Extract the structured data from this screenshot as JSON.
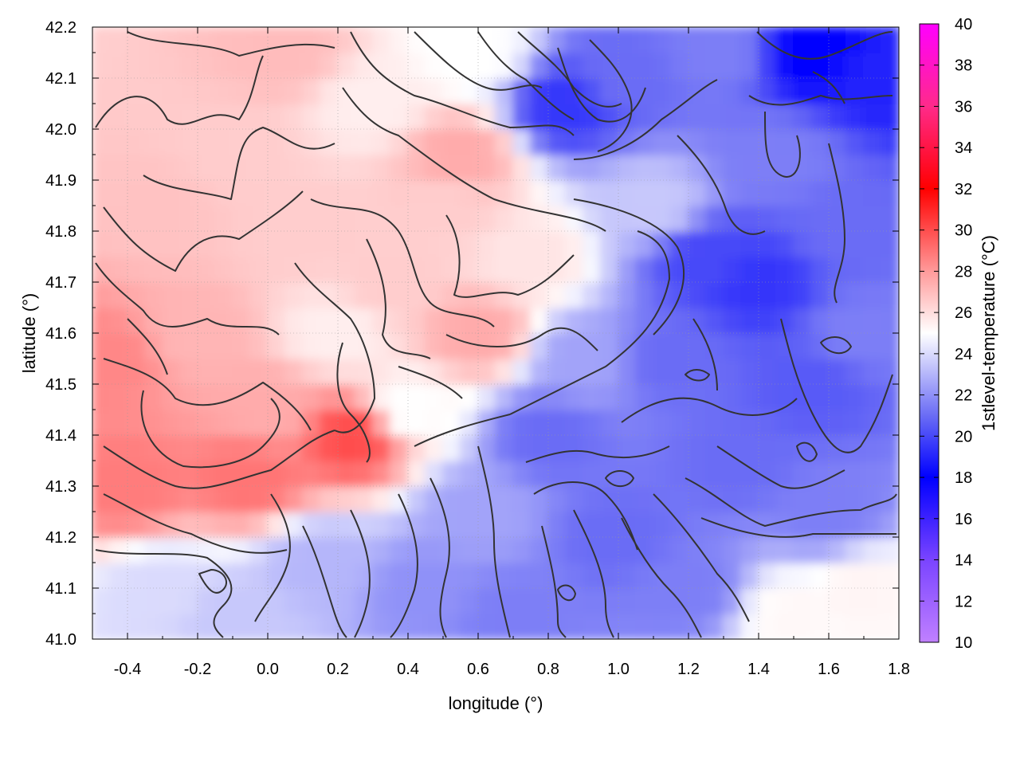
{
  "chart_data": {
    "type": "heatmap",
    "title": "",
    "xlabel": "longitude (°)",
    "ylabel": "latitude (°)",
    "colorbar_label": "1stlevel-temperature (°C)",
    "xlim": [
      -0.5,
      1.8
    ],
    "ylim": [
      41.0,
      42.2
    ],
    "zlim": [
      10,
      40
    ],
    "x_ticks": [
      "-0.4",
      "-0.2",
      "0.0",
      "0.2",
      "0.4",
      "0.6",
      "0.8",
      "1.0",
      "1.2",
      "1.4",
      "1.6",
      "1.8"
    ],
    "x_tick_values": [
      -0.4,
      -0.2,
      0.0,
      0.2,
      0.4,
      0.6,
      0.8,
      1.0,
      1.2,
      1.4,
      1.6,
      1.8
    ],
    "y_ticks": [
      "41.0",
      "41.1",
      "41.2",
      "41.3",
      "41.4",
      "41.5",
      "41.6",
      "41.7",
      "41.8",
      "41.9",
      "42.0",
      "42.1",
      "42.2"
    ],
    "y_tick_values": [
      41.0,
      41.1,
      41.2,
      41.3,
      41.4,
      41.5,
      41.6,
      41.7,
      41.8,
      41.9,
      42.0,
      42.1,
      42.2
    ],
    "colorbar_ticks": [
      "10",
      "12",
      "14",
      "16",
      "18",
      "20",
      "22",
      "24",
      "26",
      "28",
      "30",
      "32",
      "34",
      "36",
      "38",
      "40"
    ],
    "colorbar_tick_values": [
      10,
      12,
      14,
      16,
      18,
      20,
      22,
      24,
      26,
      28,
      30,
      32,
      34,
      36,
      38,
      40
    ],
    "colormap": [
      {
        "value": 10,
        "color": "#c080ff"
      },
      {
        "value": 14,
        "color": "#7a44ff"
      },
      {
        "value": 18,
        "color": "#0000ff"
      },
      {
        "value": 21,
        "color": "#6a6cf5"
      },
      {
        "value": 25,
        "color": "#ffffff"
      },
      {
        "value": 28,
        "color": "#ff9a9a"
      },
      {
        "value": 32,
        "color": "#ff0000"
      },
      {
        "value": 36,
        "color": "#ff2a8a"
      },
      {
        "value": 40,
        "color": "#ff00ff"
      }
    ],
    "grid": true,
    "temperature_samples": [
      {
        "lon": -0.45,
        "lat": 41.55,
        "temp": 28.5
      },
      {
        "lon": -0.4,
        "lat": 41.3,
        "temp": 28.8
      },
      {
        "lon": -0.3,
        "lat": 41.85,
        "temp": 26.8
      },
      {
        "lon": -0.2,
        "lat": 41.6,
        "temp": 27.2
      },
      {
        "lon": -0.3,
        "lat": 41.1,
        "temp": 24.0
      },
      {
        "lon": -0.1,
        "lat": 41.05,
        "temp": 23.5
      },
      {
        "lon": -0.1,
        "lat": 41.95,
        "temp": 26.5
      },
      {
        "lon": -0.05,
        "lat": 41.32,
        "temp": 29.0
      },
      {
        "lon": 0.0,
        "lat": 41.45,
        "temp": 27.5
      },
      {
        "lon": 0.05,
        "lat": 42.15,
        "temp": 27.0
      },
      {
        "lon": 0.1,
        "lat": 41.8,
        "temp": 26.5
      },
      {
        "lon": 0.15,
        "lat": 41.15,
        "temp": 23.0
      },
      {
        "lon": 0.2,
        "lat": 41.6,
        "temp": 25.5
      },
      {
        "lon": 0.25,
        "lat": 41.4,
        "temp": 30.0
      },
      {
        "lon": 0.3,
        "lat": 42.05,
        "temp": 25.5
      },
      {
        "lon": 0.35,
        "lat": 41.7,
        "temp": 26.5
      },
      {
        "lon": 0.4,
        "lat": 41.45,
        "temp": 25.0
      },
      {
        "lon": 0.45,
        "lat": 41.1,
        "temp": 22.0
      },
      {
        "lon": 0.5,
        "lat": 41.85,
        "temp": 26.5
      },
      {
        "lon": 0.55,
        "lat": 41.95,
        "temp": 27.5
      },
      {
        "lon": 0.6,
        "lat": 42.15,
        "temp": 25.0
      },
      {
        "lon": 0.6,
        "lat": 41.6,
        "temp": 27.5
      },
      {
        "lon": 0.6,
        "lat": 41.25,
        "temp": 22.5
      },
      {
        "lon": 0.7,
        "lat": 41.05,
        "temp": 21.5
      },
      {
        "lon": 0.75,
        "lat": 41.75,
        "temp": 25.8
      },
      {
        "lon": 0.8,
        "lat": 41.4,
        "temp": 21.0
      },
      {
        "lon": 0.85,
        "lat": 42.05,
        "temp": 19.5
      },
      {
        "lon": 0.9,
        "lat": 41.55,
        "temp": 22.5
      },
      {
        "lon": 1.0,
        "lat": 41.2,
        "temp": 21.0
      },
      {
        "lon": 1.0,
        "lat": 42.1,
        "temp": 21.0
      },
      {
        "lon": 1.1,
        "lat": 41.85,
        "temp": 23.5
      },
      {
        "lon": 1.15,
        "lat": 41.55,
        "temp": 21.0
      },
      {
        "lon": 1.2,
        "lat": 41.1,
        "temp": 21.5
      },
      {
        "lon": 1.25,
        "lat": 41.75,
        "temp": 20.0
      },
      {
        "lon": 1.3,
        "lat": 42.15,
        "temp": 21.5
      },
      {
        "lon": 1.35,
        "lat": 41.35,
        "temp": 21.0
      },
      {
        "lon": 1.4,
        "lat": 41.7,
        "temp": 19.5
      },
      {
        "lon": 1.45,
        "lat": 41.95,
        "temp": 21.5
      },
      {
        "lon": 1.55,
        "lat": 42.15,
        "temp": 18.0
      },
      {
        "lon": 1.55,
        "lat": 41.5,
        "temp": 20.5
      },
      {
        "lon": 1.6,
        "lat": 41.25,
        "temp": 21.5
      },
      {
        "lon": 1.65,
        "lat": 41.8,
        "temp": 21.0
      },
      {
        "lon": 1.7,
        "lat": 41.6,
        "temp": 21.5
      },
      {
        "lon": 1.75,
        "lat": 42.1,
        "temp": 19.0
      },
      {
        "lon": 1.5,
        "lat": 41.05,
        "temp": 25.2
      },
      {
        "lon": 1.7,
        "lat": 41.1,
        "temp": 25.3
      }
    ]
  }
}
